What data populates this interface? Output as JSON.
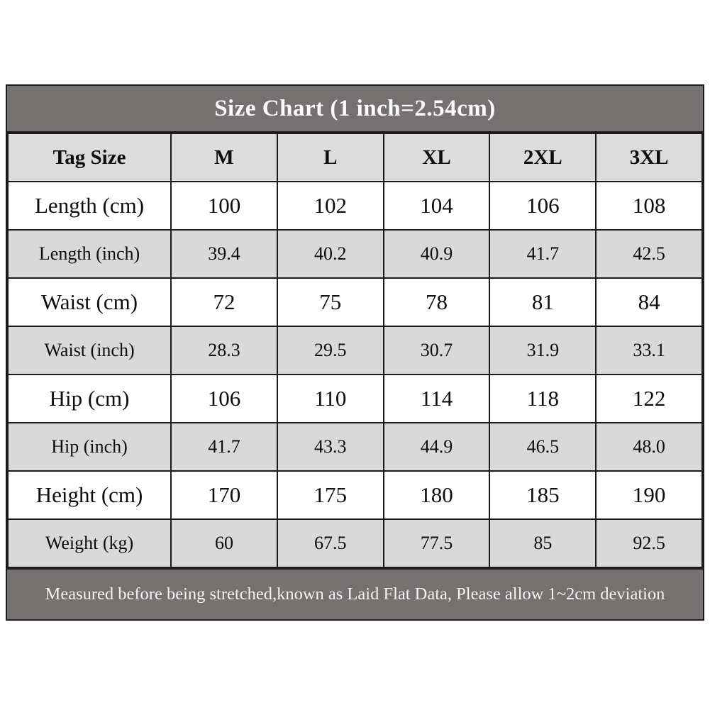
{
  "chart_data": {
    "type": "table",
    "title": "Size Chart (1 inch=2.54cm)",
    "columns": [
      "Tag Size",
      "M",
      "L",
      "XL",
      "2XL",
      "3XL"
    ],
    "rows": [
      {
        "label": "Length (cm)",
        "values": [
          "100",
          "102",
          "104",
          "106",
          "108"
        ],
        "shade": false
      },
      {
        "label": "Length (inch)",
        "values": [
          "39.4",
          "40.2",
          "40.9",
          "41.7",
          "42.5"
        ],
        "shade": true
      },
      {
        "label": "Waist (cm)",
        "values": [
          "72",
          "75",
          "78",
          "81",
          "84"
        ],
        "shade": false
      },
      {
        "label": "Waist (inch)",
        "values": [
          "28.3",
          "29.5",
          "30.7",
          "31.9",
          "33.1"
        ],
        "shade": true
      },
      {
        "label": "Hip (cm)",
        "values": [
          "106",
          "110",
          "114",
          "118",
          "122"
        ],
        "shade": false
      },
      {
        "label": "Hip (inch)",
        "values": [
          "41.7",
          "43.3",
          "44.9",
          "46.5",
          "48.0"
        ],
        "shade": true
      },
      {
        "label": "Height (cm)",
        "values": [
          "170",
          "175",
          "180",
          "185",
          "190"
        ],
        "shade": false
      },
      {
        "label": "Weight (kg)",
        "values": [
          "60",
          "67.5",
          "77.5",
          "85",
          "92.5"
        ],
        "shade": true
      }
    ],
    "footnote": "Measured before being stretched,known as Laid Flat Data, Please allow 1~2cm deviation",
    "layout_hints": {
      "grid": "full-borders",
      "title_position": "top-bar",
      "footnote_position": "bottom-bar"
    }
  },
  "colors": {
    "bar_background": "#757170",
    "bar_text": "#fbfbfb",
    "header_row_background": "#dcdcdc",
    "shaded_row_background": "#d9d9d9",
    "plain_row_background": "#ffffff",
    "border": "#1b1b1b",
    "cell_text": "#0d0d0d"
  }
}
